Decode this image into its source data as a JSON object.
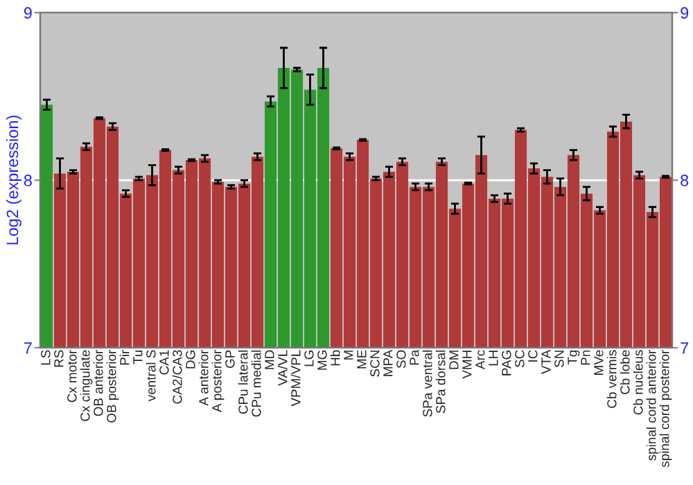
{
  "chart_data": {
    "type": "bar",
    "ylabel": "Log2 (expression)",
    "categories": [
      "LS",
      "RS",
      "Cx motor",
      "Cx cingulate",
      "OB anterior",
      "OB posterior",
      "Pir",
      "Tu",
      "ventral S",
      "CA1",
      "CA2/CA3",
      "DG",
      "A anterior",
      "A posterior",
      "GP",
      "CPu lateral",
      "CPu medial",
      "MD",
      "VA/VL",
      "VPM/VPL",
      "LG",
      "MG",
      "Hb",
      "M",
      "ME",
      "SCN",
      "MPA",
      "SO",
      "Pa",
      "SPa ventral",
      "SPa dorsal",
      "DM",
      "VMH",
      "Arc",
      "LH",
      "PAG",
      "SC",
      "IC",
      "VTA",
      "SN",
      "Tg",
      "Pn",
      "MVe",
      "Cb vermis",
      "Cb lobe",
      "Cb nucleus",
      "spinal cord anterior",
      "spinal cord posterior"
    ],
    "values": [
      8.45,
      8.04,
      8.05,
      8.2,
      8.37,
      8.32,
      7.92,
      8.01,
      8.03,
      8.18,
      8.06,
      8.12,
      8.13,
      7.99,
      7.96,
      7.98,
      8.14,
      8.47,
      8.67,
      8.66,
      8.54,
      8.67,
      8.19,
      8.14,
      8.24,
      8.01,
      8.05,
      8.11,
      7.96,
      7.96,
      8.11,
      7.83,
      7.98,
      8.15,
      7.89,
      7.89,
      8.3,
      8.07,
      8.02,
      7.96,
      8.15,
      7.92,
      7.82,
      8.29,
      8.35,
      8.03,
      7.81,
      8.02
    ],
    "errors": [
      0.03,
      0.09,
      0.01,
      0.02,
      0.005,
      0.02,
      0.02,
      0.01,
      0.06,
      0.005,
      0.02,
      0.005,
      0.02,
      0.01,
      0.01,
      0.02,
      0.02,
      0.03,
      0.12,
      0.01,
      0.09,
      0.12,
      0.005,
      0.02,
      0.005,
      0.01,
      0.03,
      0.02,
      0.02,
      0.02,
      0.02,
      0.03,
      0.005,
      0.11,
      0.02,
      0.03,
      0.01,
      0.03,
      0.04,
      0.05,
      0.03,
      0.04,
      0.02,
      0.03,
      0.04,
      0.02,
      0.03,
      0.005
    ],
    "colors": [
      "#2e9a2e",
      "#b03a3a",
      "#b03a3a",
      "#b03a3a",
      "#b03a3a",
      "#b03a3a",
      "#b03a3a",
      "#b03a3a",
      "#b03a3a",
      "#b03a3a",
      "#b03a3a",
      "#b03a3a",
      "#b03a3a",
      "#b03a3a",
      "#b03a3a",
      "#b03a3a",
      "#b03a3a",
      "#2e9a2e",
      "#2e9a2e",
      "#2e9a2e",
      "#2e9a2e",
      "#2e9a2e",
      "#b03a3a",
      "#b03a3a",
      "#b03a3a",
      "#b03a3a",
      "#b03a3a",
      "#b03a3a",
      "#b03a3a",
      "#b03a3a",
      "#b03a3a",
      "#b03a3a",
      "#b03a3a",
      "#b03a3a",
      "#b03a3a",
      "#b03a3a",
      "#b03a3a",
      "#b03a3a",
      "#b03a3a",
      "#b03a3a",
      "#b03a3a",
      "#b03a3a",
      "#b03a3a",
      "#b03a3a",
      "#b03a3a",
      "#b03a3a",
      "#b03a3a",
      "#b03a3a"
    ],
    "ylim": [
      7,
      9
    ],
    "yticks": [
      7,
      8,
      9
    ],
    "y2lim": [
      7,
      9
    ],
    "y2ticks": [
      7,
      8,
      9
    ],
    "grid": "y"
  }
}
